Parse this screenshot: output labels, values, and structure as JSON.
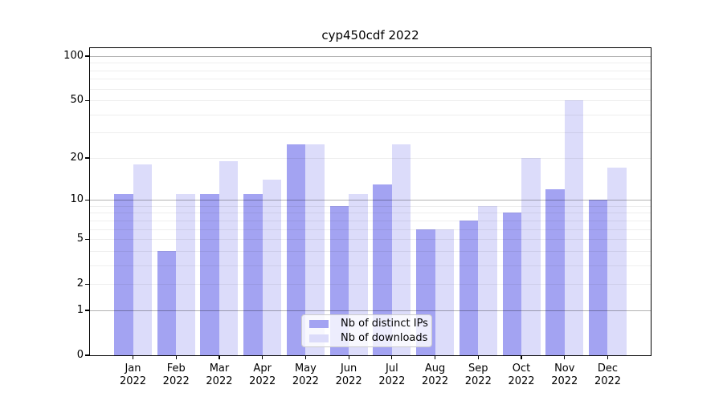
{
  "title": "cyp450cdf 2022",
  "chart_data": {
    "type": "bar",
    "title": "cyp450cdf 2022",
    "categories": [
      "Jan 2022",
      "Feb 2022",
      "Mar 2022",
      "Apr 2022",
      "May 2022",
      "Jun 2022",
      "Jul 2022",
      "Aug 2022",
      "Sep 2022",
      "Oct 2022",
      "Nov 2022",
      "Dec 2022"
    ],
    "series": [
      {
        "name": "Nb of distinct IPs",
        "color": "#a3a3f2",
        "values": [
          11,
          4,
          11,
          11,
          25,
          9,
          13,
          6,
          7,
          8,
          12,
          10
        ]
      },
      {
        "name": "Nb of downloads",
        "color": "#dcdcfa",
        "values": [
          18,
          11,
          19,
          14,
          25,
          11,
          25,
          6,
          9,
          20,
          50,
          17
        ]
      }
    ],
    "xlabel": "",
    "ylabel": "",
    "yscale": "log1p",
    "ylim": [
      0,
      113
    ],
    "y_ticks": [
      100,
      50,
      20,
      10,
      5,
      2,
      1,
      0
    ],
    "grid": true,
    "legend_position": "lower center"
  }
}
